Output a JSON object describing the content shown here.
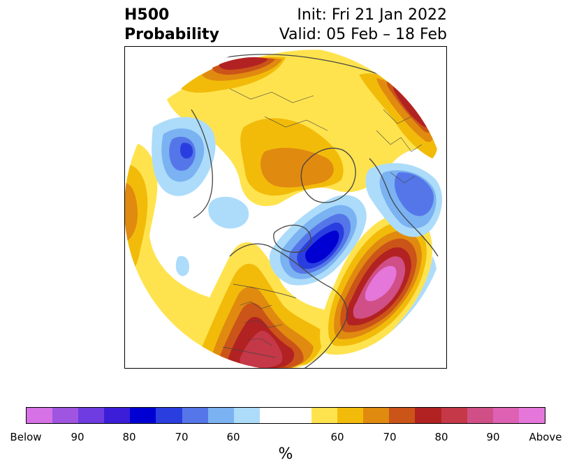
{
  "title": {
    "variable": "H500",
    "product": "Probability",
    "init": "Init: Fri 21 Jan 2022",
    "valid": "Valid: 05 Feb – 18 Feb"
  },
  "colorbar": {
    "unit_label": "%",
    "below_colors": [
      "#d771e6",
      "#9f55e0",
      "#6e3ce0",
      "#3c1ed8",
      "#0000d2",
      "#2a3ee0",
      "#5576e8",
      "#7ab2f2",
      "#acdcfa"
    ],
    "above_colors": [
      "#ffe34e",
      "#f2bb0a",
      "#e08a10",
      "#cb5418",
      "#b22222",
      "#c43848",
      "#d04f86",
      "#dd62b4",
      "#e577da"
    ],
    "neutral_color": "#ffffff",
    "tick_labels": [
      "Below",
      "90",
      "80",
      "70",
      "60",
      "60",
      "70",
      "80",
      "90",
      "Above"
    ]
  }
}
